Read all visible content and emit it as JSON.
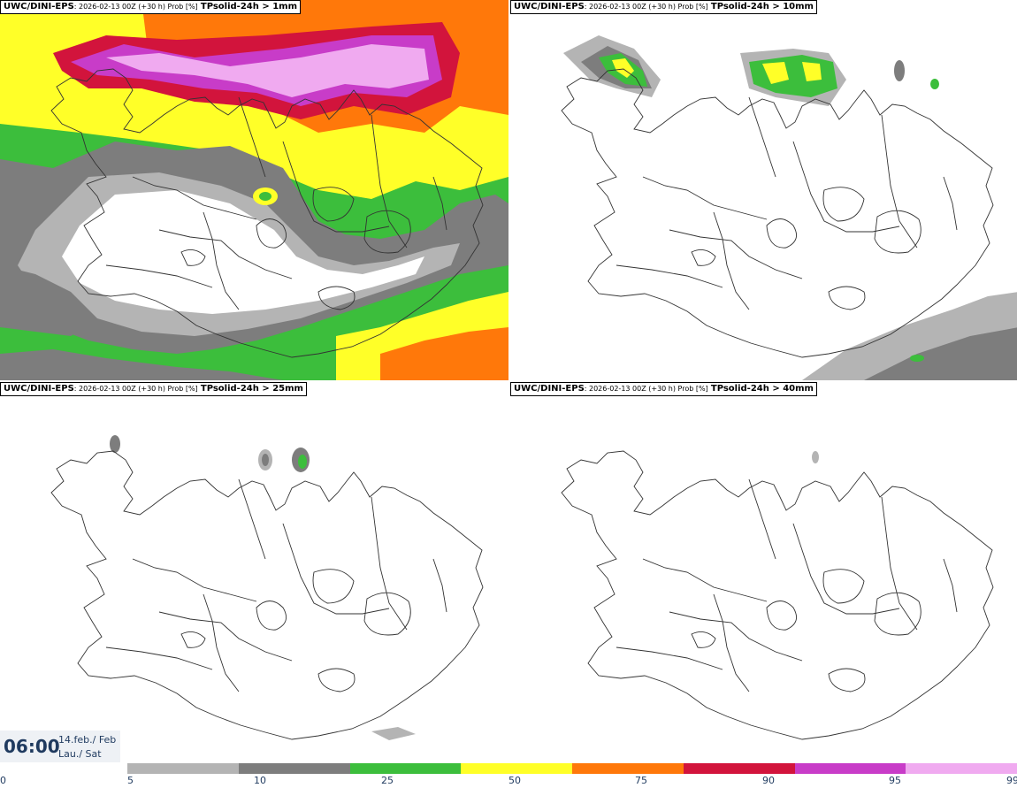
{
  "panels": [
    {
      "model": "UWC/DINI-EPS",
      "run": ": 2026-02-13 00Z (+30 h) Prob [%]",
      "var": "TPsolid-24h > 1mm"
    },
    {
      "model": "UWC/DINI-EPS",
      "run": ": 2026-02-13 00Z (+30 h) Prob [%]",
      "var": "TPsolid-24h > 10mm"
    },
    {
      "model": "UWC/DINI-EPS",
      "run": ": 2026-02-13 00Z (+30 h) Prob [%]",
      "var": "TPsolid-24h > 25mm"
    },
    {
      "model": "UWC/DINI-EPS",
      "run": ": 2026-02-13 00Z (+30 h) Prob [%]",
      "var": "TPsolid-24h > 40mm"
    }
  ],
  "valid": {
    "time": "06:00",
    "date_line1": "14.feb./ Feb",
    "date_line2": "Lau./ Sat"
  },
  "colorbar": {
    "ticks": [
      "0",
      "5",
      "10",
      "25",
      "50",
      "75",
      "90",
      "95",
      "99"
    ],
    "colors": [
      "#b4b4b4",
      "#7d7d7d",
      "#3cbe3c",
      "#ffff28",
      "#ff780a",
      "#d2143c",
      "#c83cc8",
      "#f0aaf0"
    ]
  },
  "colors": {
    "light_gray": "#b4b4b4",
    "dark_gray": "#7d7d7d",
    "green": "#3cbe3c",
    "yellow": "#ffff28",
    "orange": "#ff780a",
    "red": "#d2143c",
    "magenta": "#c83cc8",
    "pink": "#f0aaf0"
  }
}
